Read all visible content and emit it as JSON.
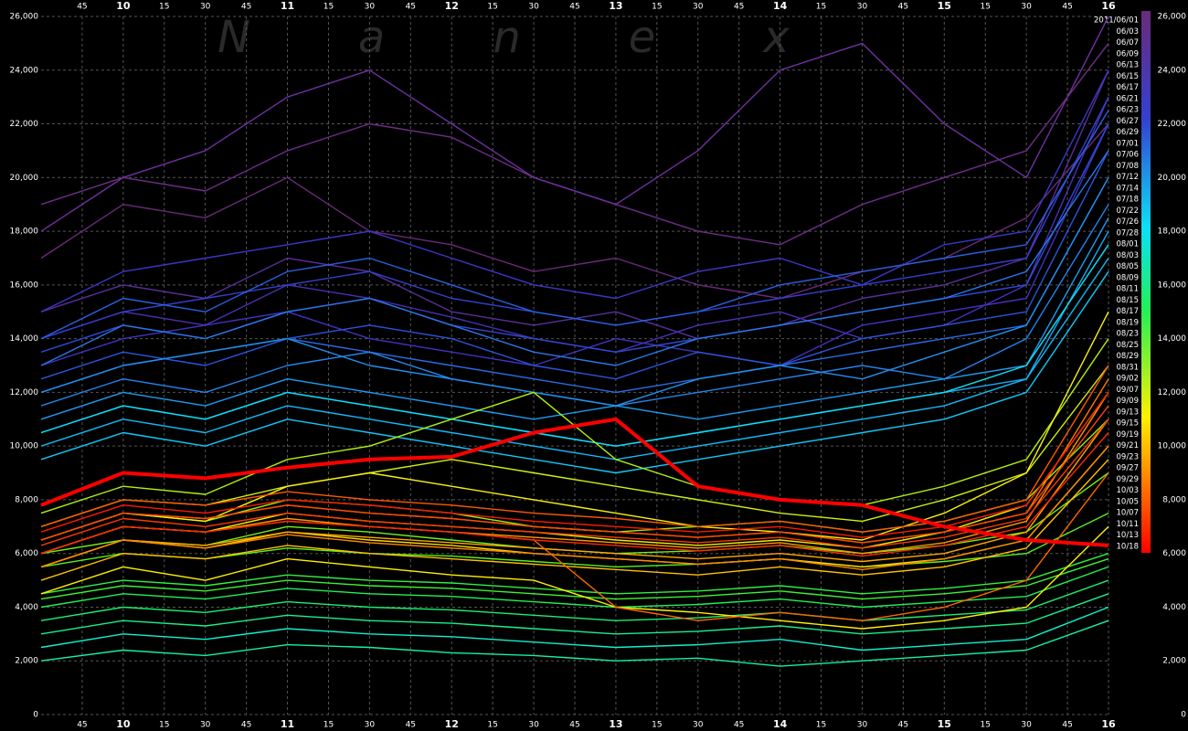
{
  "chart_data": {
    "type": "line",
    "watermark": "Nanex",
    "x": [
      9.5,
      10,
      10.5,
      11,
      11.5,
      12,
      12.5,
      13,
      13.5,
      14,
      14.5,
      15,
      15.5,
      16
    ],
    "xlim": [
      9.5,
      16
    ],
    "xticks": [
      {
        "value": 9.75,
        "label": "45"
      },
      10,
      {
        "value": 10.25,
        "label": "15"
      },
      {
        "value": 10.5,
        "label": "30"
      },
      {
        "value": 10.75,
        "label": "45"
      },
      11,
      {
        "value": 11.25,
        "label": "15"
      },
      {
        "value": 11.5,
        "label": "30"
      },
      {
        "value": 11.75,
        "label": "45"
      },
      12,
      {
        "value": 12.25,
        "label": "15"
      },
      {
        "value": 12.5,
        "label": "30"
      },
      {
        "value": 12.75,
        "label": "45"
      },
      13,
      {
        "value": 13.25,
        "label": "15"
      },
      {
        "value": 13.5,
        "label": "30"
      },
      {
        "value": 13.75,
        "label": "45"
      },
      14,
      {
        "value": 14.25,
        "label": "15"
      },
      {
        "value": 14.5,
        "label": "30"
      },
      {
        "value": 14.75,
        "label": "45"
      },
      15,
      {
        "value": 15.25,
        "label": "15"
      },
      {
        "value": 15.5,
        "label": "30"
      },
      {
        "value": 15.75,
        "label": "45"
      },
      16
    ],
    "ylim": [
      0,
      26000
    ],
    "yticks": [
      0,
      {
        "value": 2000,
        "label": "2,000"
      },
      {
        "value": 4000,
        "label": "4,000"
      },
      {
        "value": 6000,
        "label": "6,000"
      },
      {
        "value": 8000,
        "label": "8,000"
      },
      {
        "value": 10000,
        "label": "10,000"
      },
      {
        "value": 12000,
        "label": "12,000"
      },
      {
        "value": 14000,
        "label": "14,000"
      },
      {
        "value": 16000,
        "label": "16,000"
      },
      {
        "value": 18000,
        "label": "18,000"
      },
      {
        "value": 20000,
        "label": "20,000"
      },
      {
        "value": 22000,
        "label": "22,000"
      },
      {
        "value": 24000,
        "label": "24,000"
      },
      {
        "value": 26000,
        "label": "26,000"
      }
    ],
    "grid": true,
    "series": [
      {
        "name": "2011/06/01",
        "color": "#6a2a7a",
        "values": [
          17000,
          19000,
          18500,
          20000,
          18000,
          17500,
          16500,
          17000,
          16000,
          15500,
          16500,
          17000,
          18500,
          22000
        ]
      },
      {
        "name": "06/03",
        "color": "#6e2d8a",
        "values": [
          19000,
          20000,
          19500,
          21000,
          22000,
          21500,
          20000,
          19000,
          18000,
          17500,
          19000,
          20000,
          21000,
          25000
        ]
      },
      {
        "name": "06/07",
        "color": "#5a2e9a",
        "values": [
          15000,
          16000,
          15500,
          17000,
          16500,
          15000,
          14500,
          15000,
          14000,
          14500,
          15500,
          16000,
          17000,
          24000
        ]
      },
      {
        "name": "06/09",
        "color": "#7030a0",
        "values": [
          18000,
          20000,
          21000,
          23000,
          24000,
          22000,
          20000,
          19000,
          21000,
          24000,
          25000,
          22000,
          20000,
          26000
        ]
      },
      {
        "name": "06/13",
        "color": "#4a30b5",
        "values": [
          14000,
          15000,
          14500,
          16000,
          15500,
          14800,
          14000,
          13500,
          14500,
          15000,
          14000,
          14500,
          16000,
          23000
        ]
      },
      {
        "name": "06/15",
        "color": "#4232c0",
        "values": [
          13000,
          14000,
          14500,
          15000,
          14000,
          13500,
          13000,
          14000,
          13500,
          13000,
          14500,
          15000,
          15500,
          22000
        ]
      },
      {
        "name": "06/17",
        "color": "#3a38c8",
        "values": [
          15000,
          16500,
          17000,
          17500,
          18000,
          17000,
          16000,
          15500,
          16500,
          17000,
          16000,
          17500,
          18000,
          24000
        ]
      },
      {
        "name": "06/21",
        "color": "#3440d0",
        "values": [
          14000,
          15000,
          15500,
          16000,
          16500,
          15500,
          15000,
          14500,
          15000,
          15500,
          16000,
          16500,
          17000,
          23000
        ]
      },
      {
        "name": "06/23",
        "color": "#2e4ad8",
        "values": [
          13500,
          14500,
          14000,
          15000,
          15500,
          14500,
          14000,
          13500,
          14000,
          14500,
          15000,
          15500,
          16000,
          22000
        ]
      },
      {
        "name": "06/27",
        "color": "#2a55dc",
        "values": [
          12500,
          13500,
          13000,
          14000,
          14500,
          14000,
          13000,
          12500,
          13500,
          13000,
          14000,
          14500,
          15000,
          21000
        ]
      },
      {
        "name": "06/29",
        "color": "#2860e0",
        "values": [
          14000,
          15500,
          15000,
          16500,
          17000,
          16000,
          15000,
          14500,
          15000,
          16000,
          16500,
          17000,
          17500,
          22500
        ]
      },
      {
        "name": "07/01",
        "color": "#2a6ce4",
        "values": [
          12000,
          13000,
          13500,
          14000,
          13500,
          13000,
          12500,
          12000,
          12500,
          13000,
          13500,
          14000,
          14500,
          20000
        ]
      },
      {
        "name": "07/06",
        "color": "#2878e8",
        "values": [
          13000,
          14500,
          14000,
          15000,
          15500,
          14500,
          13500,
          13000,
          14000,
          14500,
          15000,
          15500,
          16500,
          21000
        ]
      },
      {
        "name": "07/08",
        "color": "#2484ec",
        "values": [
          11500,
          12500,
          12000,
          13000,
          13500,
          12500,
          12000,
          11500,
          12000,
          12500,
          13000,
          12500,
          14000,
          19000
        ]
      },
      {
        "name": "07/12",
        "color": "#2090f0",
        "values": [
          12000,
          13000,
          13500,
          14000,
          13000,
          12500,
          12000,
          11500,
          12500,
          13000,
          12500,
          13500,
          14500,
          20000
        ]
      },
      {
        "name": "07/14",
        "color": "#1c9cf2",
        "values": [
          11000,
          12000,
          11500,
          12500,
          12000,
          11500,
          11000,
          11500,
          11000,
          11500,
          12000,
          12500,
          13000,
          18500
        ]
      },
      {
        "name": "07/18",
        "color": "#18a8f4",
        "values": [
          10500,
          11500,
          11000,
          12000,
          11500,
          11000,
          10500,
          10000,
          10500,
          11000,
          11500,
          12000,
          12500,
          18000
        ]
      },
      {
        "name": "07/22",
        "color": "#14b8f6",
        "values": [
          10000,
          11000,
          10500,
          11500,
          11000,
          10500,
          10000,
          9500,
          10000,
          10500,
          11000,
          11500,
          12500,
          17000
        ]
      },
      {
        "name": "07/26",
        "color": "#10c8f8",
        "values": [
          9500,
          10500,
          10000,
          11000,
          10500,
          10000,
          9500,
          9000,
          9500,
          10000,
          10500,
          11000,
          12000,
          16500
        ]
      },
      {
        "name": "07/28",
        "color": "#0ce0f8",
        "values": [
          10500,
          11500,
          11000,
          12000,
          11500,
          11000,
          10500,
          10000,
          10500,
          11000,
          11500,
          12000,
          13000,
          17500
        ]
      },
      {
        "name": "08/01",
        "color": "#10f0d0",
        "values": [
          2500,
          3000,
          2800,
          3200,
          3000,
          2900,
          2700,
          2500,
          2600,
          2800,
          2400,
          2600,
          2800,
          4000
        ]
      },
      {
        "name": "08/03",
        "color": "#14f0a8",
        "values": [
          2000,
          2400,
          2200,
          2600,
          2500,
          2300,
          2200,
          2000,
          2100,
          1800,
          2000,
          2200,
          2400,
          3500
        ]
      },
      {
        "name": "08/05",
        "color": "#18f08c",
        "values": [
          3000,
          3500,
          3300,
          3700,
          3500,
          3400,
          3200,
          3000,
          3100,
          3300,
          3000,
          3200,
          3400,
          4500
        ]
      },
      {
        "name": "08/09",
        "color": "#1cf070",
        "values": [
          3500,
          4000,
          3800,
          4200,
          4000,
          3900,
          3700,
          3500,
          3600,
          3800,
          3500,
          3700,
          3900,
          5000
        ]
      },
      {
        "name": "08/11",
        "color": "#20f058",
        "values": [
          4000,
          4500,
          4300,
          4700,
          4500,
          4400,
          4200,
          4000,
          4100,
          4300,
          4000,
          4200,
          4400,
          5500
        ]
      },
      {
        "name": "08/15",
        "color": "#30f040",
        "values": [
          4500,
          5000,
          4800,
          5200,
          5000,
          4900,
          4700,
          4500,
          4600,
          4800,
          4500,
          4700,
          5000,
          6000
        ]
      },
      {
        "name": "08/17",
        "color": "#40f030",
        "values": [
          4300,
          4800,
          4600,
          5000,
          4800,
          4700,
          4500,
          4300,
          4400,
          4600,
          4300,
          4500,
          4800,
          5800
        ]
      },
      {
        "name": "08/19",
        "color": "#58f020",
        "values": [
          5500,
          6000,
          5800,
          6200,
          6000,
          5900,
          5700,
          5500,
          5600,
          5800,
          5500,
          5700,
          6000,
          7500
        ]
      },
      {
        "name": "08/23",
        "color": "#70f018",
        "values": [
          6000,
          6500,
          6300,
          7000,
          6800,
          6500,
          6200,
          6000,
          6100,
          6300,
          6000,
          6300,
          6800,
          9000
        ]
      },
      {
        "name": "08/25",
        "color": "#90f010",
        "values": [
          6500,
          7500,
          7200,
          8000,
          7800,
          7500,
          7000,
          6800,
          7000,
          7200,
          6800,
          7200,
          8000,
          11000
        ]
      },
      {
        "name": "08/29",
        "color": "#b0f010",
        "values": [
          7500,
          8500,
          8200,
          9500,
          10000,
          11000,
          12000,
          9500,
          8500,
          8000,
          7800,
          8500,
          9500,
          14000
        ]
      },
      {
        "name": "08/31",
        "color": "#d0f010",
        "values": [
          7000,
          8000,
          7800,
          8500,
          9000,
          9500,
          9000,
          8500,
          8000,
          7500,
          7200,
          8000,
          9000,
          13000
        ]
      },
      {
        "name": "09/02",
        "color": "#e8f010",
        "values": [
          6000,
          7000,
          6800,
          7500,
          7200,
          7000,
          6800,
          6500,
          6300,
          6500,
          6200,
          6800,
          7800,
          12000
        ]
      },
      {
        "name": "09/07",
        "color": "#f8f010",
        "values": [
          6500,
          7500,
          7200,
          8500,
          9000,
          8500,
          8000,
          7500,
          7000,
          6800,
          6500,
          7500,
          9000,
          15000
        ]
      },
      {
        "name": "09/09",
        "color": "#fff000",
        "values": [
          4500,
          5500,
          5000,
          5800,
          5500,
          5200,
          5000,
          4000,
          3800,
          3500,
          3200,
          3500,
          4000,
          7000
        ]
      },
      {
        "name": "09/13",
        "color": "#ffd800",
        "values": [
          5500,
          6500,
          6200,
          6800,
          6500,
          6300,
          6000,
          5800,
          5600,
          5800,
          5500,
          5800,
          6500,
          10000
        ]
      },
      {
        "name": "09/15",
        "color": "#ffc000",
        "values": [
          5000,
          6000,
          5800,
          6300,
          6000,
          5800,
          5600,
          5400,
          5200,
          5500,
          5200,
          5500,
          6200,
          9500
        ]
      },
      {
        "name": "09/19",
        "color": "#ffa800",
        "values": [
          5500,
          6500,
          6300,
          6800,
          6600,
          6400,
          6200,
          6000,
          5800,
          6000,
          5700,
          6000,
          6800,
          11000
        ]
      },
      {
        "name": "09/21",
        "color": "#ff9800",
        "values": [
          6000,
          7000,
          6800,
          7300,
          7000,
          6800,
          6600,
          6400,
          6200,
          6400,
          6000,
          6400,
          7200,
          12000
        ]
      },
      {
        "name": "09/23",
        "color": "#ff8800",
        "values": [
          5500,
          6500,
          6200,
          6700,
          6400,
          6200,
          6000,
          5800,
          5600,
          5800,
          5400,
          5800,
          6500,
          10000
        ]
      },
      {
        "name": "09/27",
        "color": "#ff7800",
        "values": [
          6500,
          7500,
          7300,
          7800,
          7500,
          7300,
          7000,
          6800,
          6600,
          6800,
          6400,
          6800,
          7500,
          12500
        ]
      },
      {
        "name": "09/29",
        "color": "#ff6800",
        "values": [
          6000,
          7000,
          6800,
          7200,
          7000,
          6800,
          6500,
          4000,
          3500,
          3800,
          3500,
          4000,
          5000,
          9000
        ]
      },
      {
        "name": "10/03",
        "color": "#ff5800",
        "values": [
          7000,
          8000,
          7800,
          8300,
          8000,
          7800,
          7500,
          7300,
          7000,
          7200,
          6800,
          7200,
          8000,
          13000
        ]
      },
      {
        "name": "10/05",
        "color": "#ff4800",
        "values": [
          6500,
          7500,
          7300,
          7800,
          7500,
          7300,
          7000,
          6800,
          6600,
          6800,
          6400,
          6800,
          7500,
          11500
        ]
      },
      {
        "name": "10/07",
        "color": "#ff3800",
        "values": [
          6300,
          7300,
          7000,
          7500,
          7200,
          7000,
          6800,
          6600,
          6400,
          6600,
          6200,
          6600,
          7300,
          11000
        ]
      },
      {
        "name": "10/11",
        "color": "#ff2800",
        "values": [
          6000,
          7000,
          6800,
          7200,
          7000,
          6800,
          6500,
          6300,
          6100,
          6300,
          5900,
          6300,
          7000,
          10500
        ]
      },
      {
        "name": "10/13",
        "color": "#ff1800",
        "values": [
          6800,
          7800,
          7500,
          8000,
          7800,
          7500,
          7200,
          7000,
          6800,
          7000,
          6600,
          7000,
          7800,
          12000
        ]
      },
      {
        "name": "10/18",
        "color": "#ff0000",
        "values": [
          7800,
          9000,
          8800,
          9200,
          9500,
          9600,
          10500,
          11000,
          8500,
          8000,
          7800,
          7000,
          6500,
          6300
        ]
      }
    ]
  }
}
